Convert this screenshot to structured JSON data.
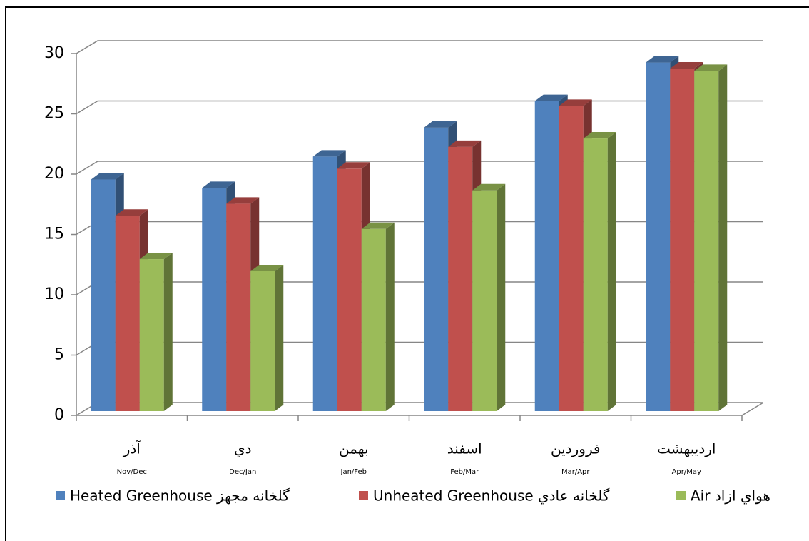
{
  "chart_data": {
    "type": "bar3d",
    "categories": [
      "آذر",
      "دي",
      "بهمن",
      "اسفند",
      "فروردين",
      "ارديبهشت"
    ],
    "category_sublabels": [
      "Nov/Dec",
      "Dec/Jan",
      "Jan/Feb",
      "Feb/Mar",
      "Mar/Apr",
      "Apr/May"
    ],
    "series": [
      {
        "name": "Heated Greenhouse گلخانه مجهز",
        "color": "#4f81bd",
        "values": [
          19.2,
          18.5,
          21.1,
          23.5,
          25.7,
          28.9
        ]
      },
      {
        "name": "Unheated Greenhouse گلخانه عادي",
        "color": "#c0504d",
        "values": [
          16.2,
          17.2,
          20.1,
          21.9,
          25.3,
          28.4
        ]
      },
      {
        "name": "Air هواي ازاد",
        "color": "#9bbb59",
        "values": [
          12.6,
          11.6,
          15.1,
          18.3,
          22.6,
          28.2
        ]
      }
    ],
    "ylim": [
      0,
      30
    ],
    "yticks": [
      0,
      5,
      10,
      15,
      20,
      25,
      30
    ],
    "grid": true,
    "legend": "bottom"
  }
}
